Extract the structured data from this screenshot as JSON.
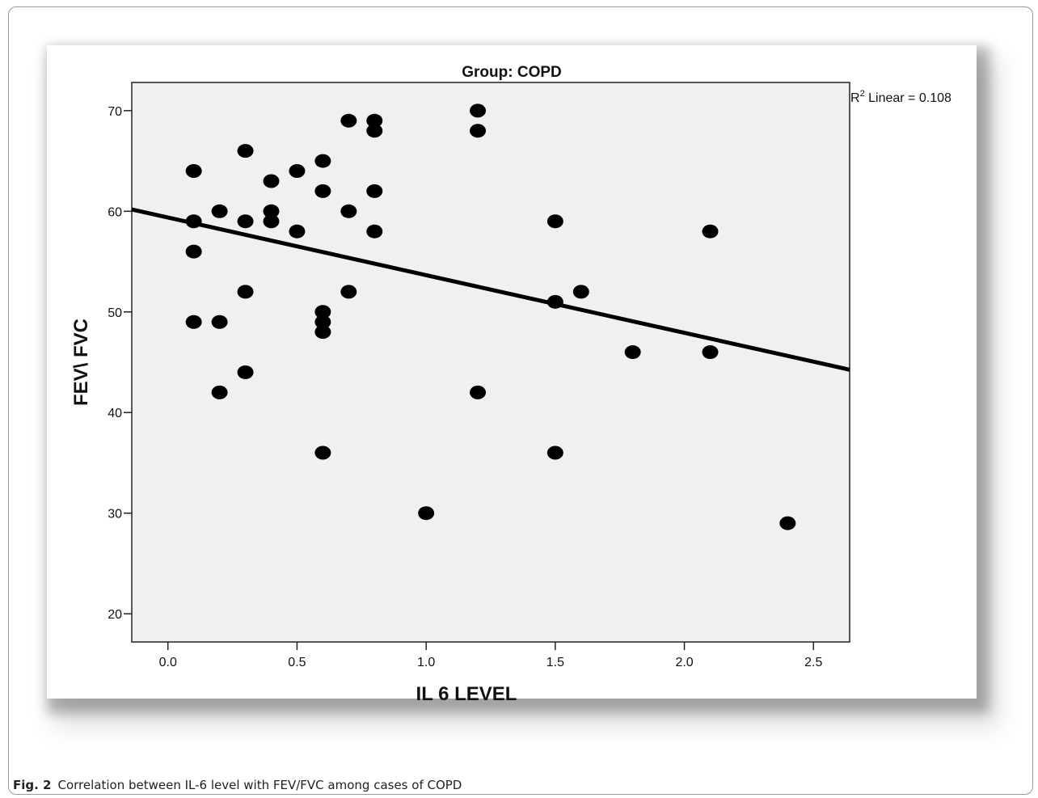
{
  "caption": {
    "label": "Fig. 2",
    "text": "Correlation between IL-6 level with FEV/FVC among cases of COPD"
  },
  "chart_data": {
    "type": "scatter",
    "title": "Group: COPD",
    "xlabel": "IL 6 LEVEL",
    "ylabel": "FEV\\ FVC",
    "xlim": [
      -0.14,
      2.64
    ],
    "ylim": [
      17.2,
      72.8
    ],
    "x_ticks": [
      0.0,
      0.5,
      1.0,
      1.5,
      2.0,
      2.5
    ],
    "x_tick_labels": [
      "0.0",
      "0.5",
      "1.0",
      "1.5",
      "2.0",
      "2.5"
    ],
    "y_ticks": [
      20,
      30,
      40,
      50,
      60,
      70
    ],
    "y_tick_labels": [
      "20",
      "30",
      "40",
      "50",
      "60",
      "70"
    ],
    "grid": false,
    "plot_background": "#f0f0f0",
    "marker_color": "#000000",
    "fit_line": {
      "label_prefix": "R",
      "label_superscript": "2",
      "label_suffix": " Linear = 0.108",
      "intercept": 59.38,
      "slope": -5.73
    },
    "points": [
      {
        "x": 0.1,
        "y": 64
      },
      {
        "x": 0.1,
        "y": 59
      },
      {
        "x": 0.1,
        "y": 56
      },
      {
        "x": 0.1,
        "y": 49
      },
      {
        "x": 0.2,
        "y": 60
      },
      {
        "x": 0.2,
        "y": 49
      },
      {
        "x": 0.2,
        "y": 42
      },
      {
        "x": 0.3,
        "y": 66
      },
      {
        "x": 0.3,
        "y": 59
      },
      {
        "x": 0.3,
        "y": 52
      },
      {
        "x": 0.3,
        "y": 44
      },
      {
        "x": 0.4,
        "y": 63
      },
      {
        "x": 0.4,
        "y": 60
      },
      {
        "x": 0.4,
        "y": 59
      },
      {
        "x": 0.5,
        "y": 64
      },
      {
        "x": 0.5,
        "y": 58
      },
      {
        "x": 0.6,
        "y": 65
      },
      {
        "x": 0.6,
        "y": 62
      },
      {
        "x": 0.6,
        "y": 50
      },
      {
        "x": 0.6,
        "y": 49
      },
      {
        "x": 0.6,
        "y": 48
      },
      {
        "x": 0.6,
        "y": 36
      },
      {
        "x": 0.7,
        "y": 69
      },
      {
        "x": 0.7,
        "y": 60
      },
      {
        "x": 0.7,
        "y": 52
      },
      {
        "x": 0.8,
        "y": 69
      },
      {
        "x": 0.8,
        "y": 68
      },
      {
        "x": 0.8,
        "y": 62
      },
      {
        "x": 0.8,
        "y": 58
      },
      {
        "x": 1.0,
        "y": 30
      },
      {
        "x": 1.2,
        "y": 70
      },
      {
        "x": 1.2,
        "y": 68
      },
      {
        "x": 1.2,
        "y": 42
      },
      {
        "x": 1.5,
        "y": 59
      },
      {
        "x": 1.5,
        "y": 51
      },
      {
        "x": 1.5,
        "y": 36
      },
      {
        "x": 1.6,
        "y": 52
      },
      {
        "x": 1.8,
        "y": 46
      },
      {
        "x": 2.1,
        "y": 58
      },
      {
        "x": 2.1,
        "y": 46
      },
      {
        "x": 2.4,
        "y": 29
      }
    ]
  }
}
